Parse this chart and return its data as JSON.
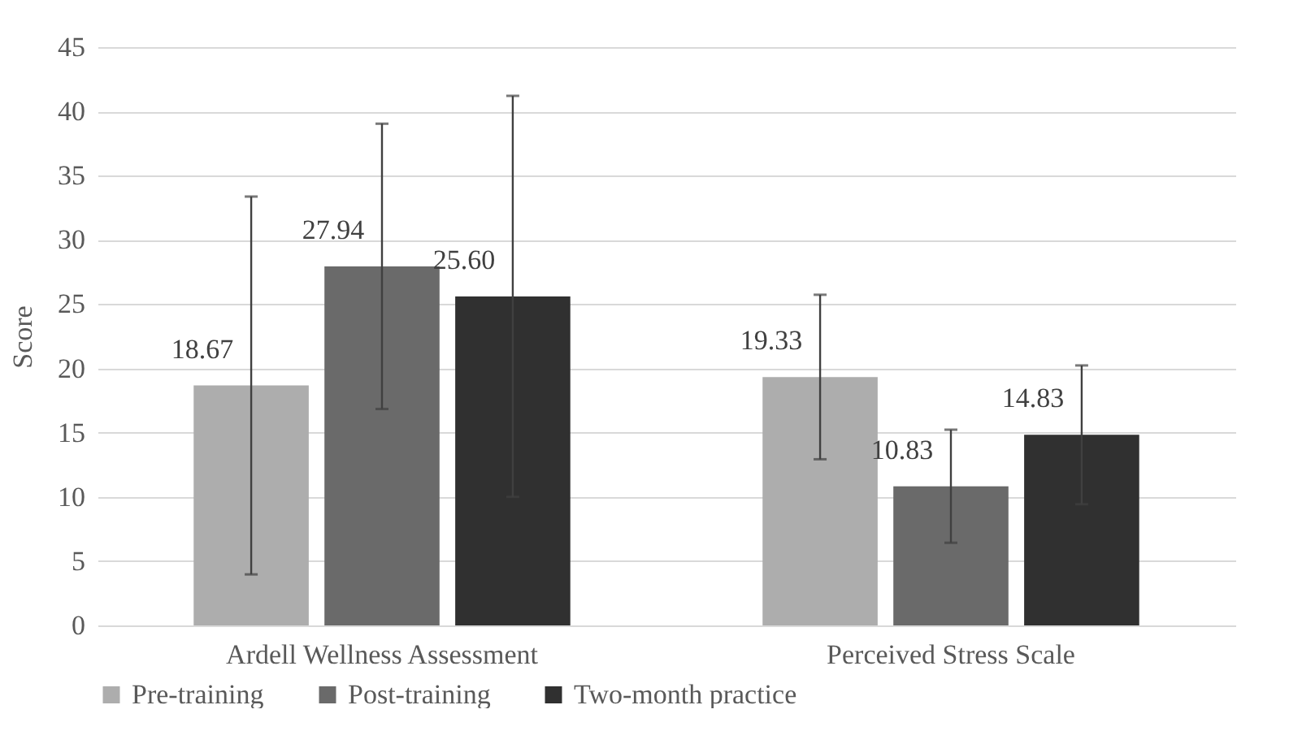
{
  "chart_data": {
    "type": "bar",
    "ylabel": "Score",
    "categories": [
      "Ardell Wellness Assessment",
      "Perceived Stress Scale"
    ],
    "series": [
      {
        "name": "Pre-training",
        "color": "#adadad",
        "values": [
          18.67,
          19.33
        ],
        "value_labels": [
          "18.67",
          "19.33"
        ],
        "errors": [
          14.7,
          6.4
        ]
      },
      {
        "name": "Post-training",
        "color": "#6a6a6a",
        "values": [
          27.94,
          10.83
        ],
        "value_labels": [
          "27.94",
          "10.83"
        ],
        "errors": [
          11.1,
          4.4
        ]
      },
      {
        "name": "Two-month practice",
        "color": "#303030",
        "values": [
          25.6,
          14.83
        ],
        "value_labels": [
          "25.60",
          "14.83"
        ],
        "errors": [
          15.6,
          5.4
        ]
      }
    ],
    "ylim": [
      0,
      45
    ],
    "yticks": [
      0,
      5,
      10,
      15,
      20,
      25,
      30,
      35,
      40,
      45
    ],
    "grid": "y",
    "legend": "bottom"
  }
}
